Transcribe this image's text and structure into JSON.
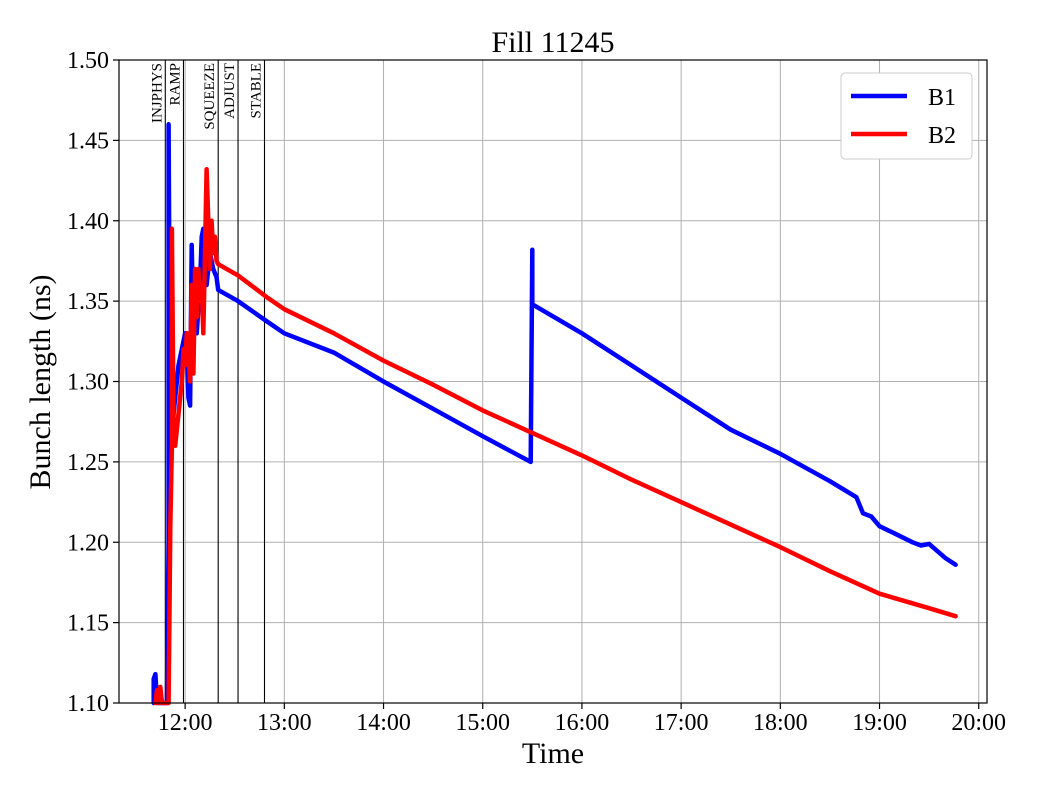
{
  "chart_data": {
    "type": "line",
    "title": "Fill 11245",
    "xlabel": "Time",
    "ylabel": "Bunch length (ns)",
    "xlim": [
      "11:20",
      "20:05"
    ],
    "ylim": [
      1.1,
      1.5
    ],
    "grid": true,
    "legend_position": "top-right",
    "x_ticks": [
      "12:00",
      "13:00",
      "14:00",
      "15:00",
      "16:00",
      "17:00",
      "18:00",
      "19:00",
      "20:00"
    ],
    "y_ticks": [
      "1.10",
      "1.15",
      "1.20",
      "1.25",
      "1.30",
      "1.35",
      "1.40",
      "1.45",
      "1.50"
    ],
    "phases": [
      {
        "label": "INJPHYS",
        "time": "11:48"
      },
      {
        "label": "RAMP",
        "time": "11:59"
      },
      {
        "label": "SQUEEZE",
        "time": "12:20"
      },
      {
        "label": "ADJUST",
        "time": "12:32"
      },
      {
        "label": "STABLE",
        "time": "12:48"
      }
    ],
    "series": [
      {
        "name": "B1",
        "color": "#0000ff",
        "points": [
          [
            "11:41",
            1.1
          ],
          [
            "11:41",
            1.115
          ],
          [
            "11:42",
            1.118
          ],
          [
            "11:43",
            1.1
          ],
          [
            "11:49",
            1.1
          ],
          [
            "11:50",
            1.2
          ],
          [
            "11:50",
            1.46
          ],
          [
            "11:51",
            1.25
          ],
          [
            "11:52",
            1.27
          ],
          [
            "11:54",
            1.29
          ],
          [
            "11:56",
            1.31
          ],
          [
            "11:58",
            1.32
          ],
          [
            "12:00",
            1.33
          ],
          [
            "12:01",
            1.32
          ],
          [
            "12:02",
            1.29
          ],
          [
            "12:03",
            1.285
          ],
          [
            "12:04",
            1.385
          ],
          [
            "12:05",
            1.33
          ],
          [
            "12:06",
            1.35
          ],
          [
            "12:07",
            1.33
          ],
          [
            "12:09",
            1.36
          ],
          [
            "12:10",
            1.39
          ],
          [
            "12:11",
            1.395
          ],
          [
            "12:12",
            1.37
          ],
          [
            "12:13",
            1.36
          ],
          [
            "12:15",
            1.38
          ],
          [
            "12:16",
            1.375
          ],
          [
            "12:17",
            1.37
          ],
          [
            "12:19",
            1.365
          ],
          [
            "12:20",
            1.357
          ],
          [
            "12:32",
            1.35
          ],
          [
            "12:50",
            1.337
          ],
          [
            "13:00",
            1.33
          ],
          [
            "13:30",
            1.318
          ],
          [
            "14:00",
            1.3
          ],
          [
            "14:30",
            1.283
          ],
          [
            "15:00",
            1.266
          ],
          [
            "15:29",
            1.25
          ],
          [
            "15:30",
            1.382
          ],
          [
            "15:30",
            1.348
          ],
          [
            "16:00",
            1.33
          ],
          [
            "16:30",
            1.31
          ],
          [
            "17:00",
            1.29
          ],
          [
            "17:30",
            1.27
          ],
          [
            "18:00",
            1.255
          ],
          [
            "18:30",
            1.238
          ],
          [
            "18:46",
            1.228
          ],
          [
            "18:50",
            1.218
          ],
          [
            "18:55",
            1.216
          ],
          [
            "19:00",
            1.21
          ],
          [
            "19:10",
            1.205
          ],
          [
            "19:20",
            1.2
          ],
          [
            "19:25",
            1.198
          ],
          [
            "19:30",
            1.199
          ],
          [
            "19:40",
            1.19
          ],
          [
            "19:46",
            1.186
          ]
        ]
      },
      {
        "name": "B2",
        "color": "#ff0000",
        "points": [
          [
            "11:42",
            1.1
          ],
          [
            "11:43",
            1.108
          ],
          [
            "11:44",
            1.1
          ],
          [
            "11:45",
            1.11
          ],
          [
            "11:46",
            1.1
          ],
          [
            "11:50",
            1.1
          ],
          [
            "11:51",
            1.21
          ],
          [
            "11:52",
            1.26
          ],
          [
            "11:52",
            1.395
          ],
          [
            "11:53",
            1.27
          ],
          [
            "11:54",
            1.26
          ],
          [
            "11:56",
            1.28
          ],
          [
            "11:58",
            1.3
          ],
          [
            "11:59",
            1.32
          ],
          [
            "12:00",
            1.31
          ],
          [
            "12:01",
            1.33
          ],
          [
            "12:02",
            1.32
          ],
          [
            "12:03",
            1.3
          ],
          [
            "12:04",
            1.36
          ],
          [
            "12:05",
            1.305
          ],
          [
            "12:06",
            1.37
          ],
          [
            "12:07",
            1.34
          ],
          [
            "12:08",
            1.37
          ],
          [
            "12:09",
            1.35
          ],
          [
            "12:10",
            1.36
          ],
          [
            "12:11",
            1.33
          ],
          [
            "12:12",
            1.38
          ],
          [
            "12:13",
            1.432
          ],
          [
            "12:14",
            1.4
          ],
          [
            "12:15",
            1.37
          ],
          [
            "12:16",
            1.4
          ],
          [
            "12:17",
            1.38
          ],
          [
            "12:18",
            1.39
          ],
          [
            "12:19",
            1.375
          ],
          [
            "12:20",
            1.373
          ],
          [
            "12:32",
            1.366
          ],
          [
            "12:50",
            1.352
          ],
          [
            "13:00",
            1.345
          ],
          [
            "13:30",
            1.33
          ],
          [
            "14:00",
            1.313
          ],
          [
            "14:30",
            1.298
          ],
          [
            "15:00",
            1.282
          ],
          [
            "15:30",
            1.268
          ],
          [
            "16:00",
            1.254
          ],
          [
            "16:30",
            1.239
          ],
          [
            "17:00",
            1.225
          ],
          [
            "17:30",
            1.211
          ],
          [
            "18:00",
            1.197
          ],
          [
            "18:30",
            1.182
          ],
          [
            "19:00",
            1.168
          ],
          [
            "19:30",
            1.159
          ],
          [
            "19:46",
            1.154
          ]
        ]
      }
    ]
  }
}
